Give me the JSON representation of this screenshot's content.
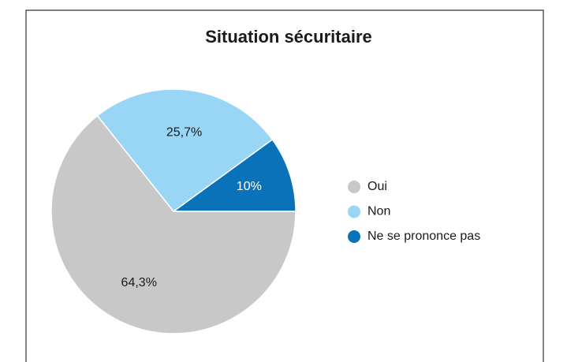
{
  "chart_data": {
    "type": "pie",
    "title": "Situation sécuritaire",
    "categories": [
      "Oui",
      "Non",
      "Ne se prononce pas"
    ],
    "values": [
      64.3,
      25.7,
      10
    ],
    "value_labels": [
      "64,3%",
      "25,7%",
      "10%"
    ],
    "colors": [
      "#c8c8c8",
      "#99d5f5",
      "#0a72b8"
    ],
    "label_colors": [
      "#1a1a1a",
      "#1a1a1a",
      "#ffffff"
    ],
    "legend": "right"
  }
}
